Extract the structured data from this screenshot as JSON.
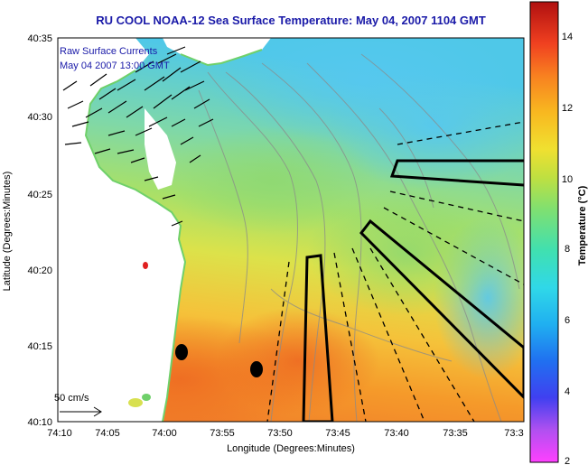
{
  "title": "RU COOL  NOAA-12  Sea Surface Temperature:  May 04, 2007 1104 GMT",
  "legend": {
    "line1": "Raw Surface Currents",
    "line2": "May 04 2007 13:00 GMT"
  },
  "scale_label": "50 cm/s",
  "xlabel": "Longitude (Degrees:Minutes)",
  "ylabel": "Latitude (Degrees:Minutes)",
  "x_ticks": [
    "74:10",
    "74:05",
    "74:00",
    "73:55",
    "73:50",
    "73:45",
    "73:40",
    "73:35",
    "73:3"
  ],
  "y_ticks": [
    "40:35",
    "40:30",
    "40:25",
    "40:20",
    "40:15",
    "40:10"
  ],
  "colorbar": {
    "label": "Temperature (°C)",
    "ticks": [
      "14",
      "12",
      "10",
      "8",
      "6",
      "4",
      "2"
    ],
    "min": 2,
    "max": 15
  },
  "colors": {
    "land": "#ffffff",
    "coast_green": "#6fd06a",
    "warm": "#f07a2a",
    "mid": "#f2d640",
    "cool": "#63d0ee",
    "title": "#1a1aa8"
  }
}
